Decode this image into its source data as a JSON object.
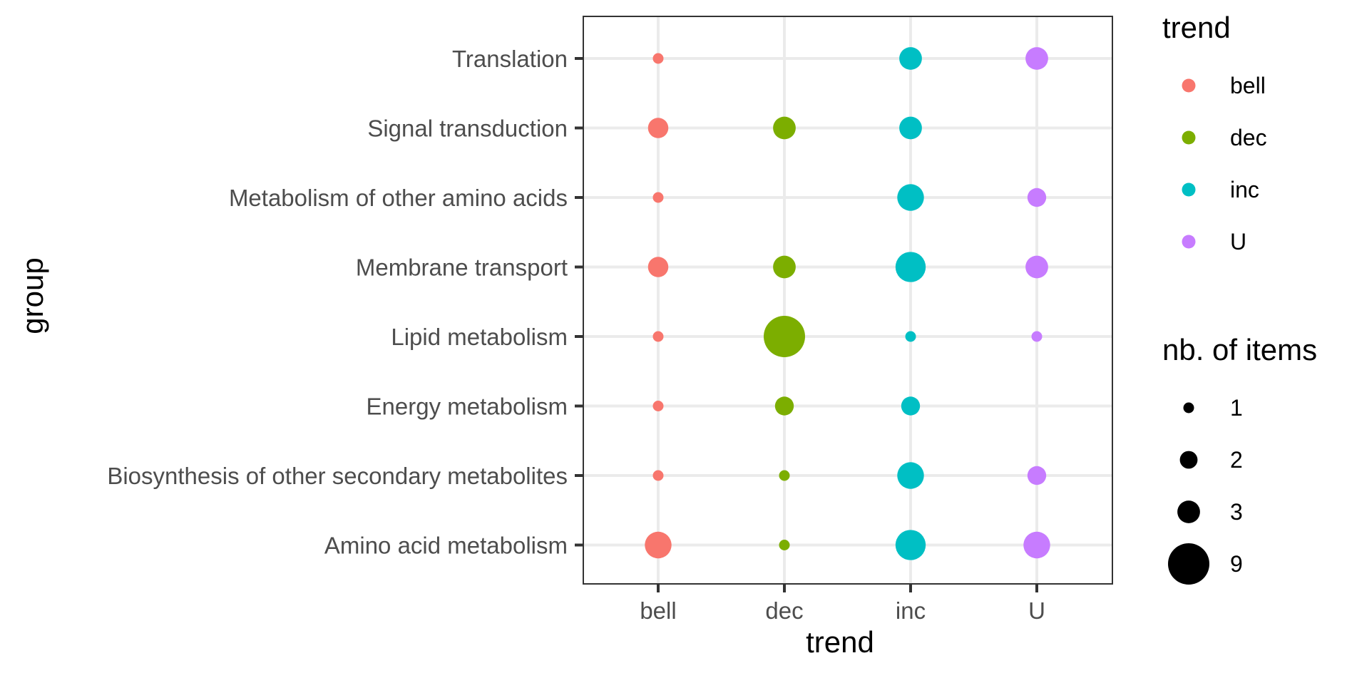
{
  "chart_data": {
    "type": "scatter",
    "xlabel": "trend",
    "ylabel": "group",
    "x_categories": [
      "bell",
      "dec",
      "inc",
      "U"
    ],
    "y_categories": [
      "Translation",
      "Signal transduction",
      "Metabolism of other amino acids",
      "Membrane transport",
      "Lipid metabolism",
      "Energy metabolism",
      "Biosynthesis of other secondary metabolites",
      "Amino acid metabolism"
    ],
    "colors": {
      "bell": "#F8766D",
      "dec": "#7CAE00",
      "inc": "#00BFC4",
      "U": "#C77CFF"
    },
    "points": [
      {
        "group": "Translation",
        "trend": "bell",
        "n": 1
      },
      {
        "group": "Translation",
        "trend": "inc",
        "n": 3
      },
      {
        "group": "Translation",
        "trend": "U",
        "n": 3
      },
      {
        "group": "Signal transduction",
        "trend": "bell",
        "n": 2.5
      },
      {
        "group": "Signal transduction",
        "trend": "dec",
        "n": 3
      },
      {
        "group": "Signal transduction",
        "trend": "inc",
        "n": 3
      },
      {
        "group": "Metabolism of other amino acids",
        "trend": "bell",
        "n": 1
      },
      {
        "group": "Metabolism of other amino acids",
        "trend": "inc",
        "n": 4
      },
      {
        "group": "Metabolism of other amino acids",
        "trend": "U",
        "n": 2.2
      },
      {
        "group": "Membrane transport",
        "trend": "bell",
        "n": 2.5
      },
      {
        "group": "Membrane transport",
        "trend": "dec",
        "n": 3
      },
      {
        "group": "Membrane transport",
        "trend": "inc",
        "n": 5
      },
      {
        "group": "Membrane transport",
        "trend": "U",
        "n": 3
      },
      {
        "group": "Lipid metabolism",
        "trend": "bell",
        "n": 1
      },
      {
        "group": "Lipid metabolism",
        "trend": "dec",
        "n": 9
      },
      {
        "group": "Lipid metabolism",
        "trend": "inc",
        "n": 1
      },
      {
        "group": "Lipid metabolism",
        "trend": "U",
        "n": 1
      },
      {
        "group": "Energy metabolism",
        "trend": "bell",
        "n": 1
      },
      {
        "group": "Energy metabolism",
        "trend": "dec",
        "n": 2.2
      },
      {
        "group": "Energy metabolism",
        "trend": "inc",
        "n": 2.2
      },
      {
        "group": "Biosynthesis of other secondary metabolites",
        "trend": "bell",
        "n": 1
      },
      {
        "group": "Biosynthesis of other secondary metabolites",
        "trend": "dec",
        "n": 1
      },
      {
        "group": "Biosynthesis of other secondary metabolites",
        "trend": "inc",
        "n": 4
      },
      {
        "group": "Biosynthesis of other secondary metabolites",
        "trend": "U",
        "n": 2.2
      },
      {
        "group": "Amino acid metabolism",
        "trend": "bell",
        "n": 4
      },
      {
        "group": "Amino acid metabolism",
        "trend": "dec",
        "n": 1
      },
      {
        "group": "Amino acid metabolism",
        "trend": "inc",
        "n": 5
      },
      {
        "group": "Amino acid metabolism",
        "trend": "U",
        "n": 4
      }
    ],
    "legend_color": {
      "title": "trend",
      "entries": [
        "bell",
        "dec",
        "inc",
        "U"
      ]
    },
    "legend_size": {
      "title": "nb. of items",
      "entries": [
        {
          "label": "1",
          "n": 1
        },
        {
          "label": "2",
          "n": 2
        },
        {
          "label": "3",
          "n": 3
        },
        {
          "label": "9",
          "n": 9
        }
      ]
    }
  }
}
